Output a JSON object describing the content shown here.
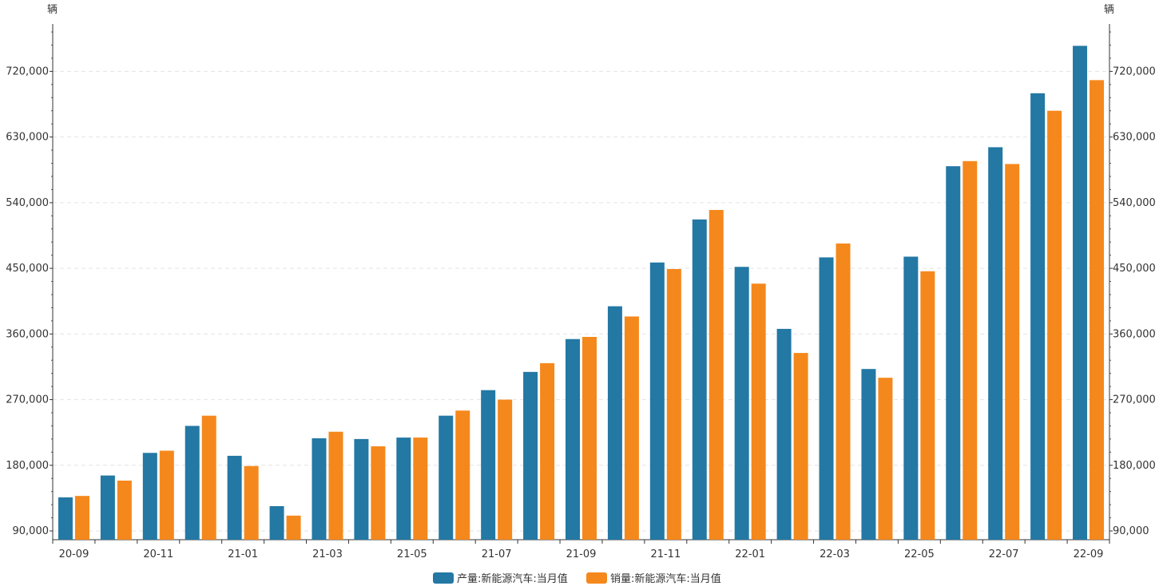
{
  "chart_data": {
    "type": "bar",
    "y_unit_left": "辆",
    "y_unit_right": "辆",
    "categories": [
      "20-09",
      "20-10",
      "20-11",
      "20-12",
      "21-01",
      "21-02",
      "21-03",
      "21-04",
      "21-05",
      "21-06",
      "21-07",
      "21-08",
      "21-09",
      "21-10",
      "21-11",
      "21-12",
      "22-01",
      "22-02",
      "22-03",
      "22-04",
      "22-05",
      "22-06",
      "22-07",
      "22-08",
      "22-09"
    ],
    "x_tick_labels": [
      "20-09",
      "",
      "20-11",
      "",
      "21-01",
      "",
      "21-03",
      "",
      "21-05",
      "",
      "21-07",
      "",
      "21-09",
      "",
      "21-11",
      "",
      "22-01",
      "",
      "22-03",
      "",
      "22-05",
      "",
      "22-07",
      "",
      "22-09"
    ],
    "series": [
      {
        "name": "产量:新能源汽车:当月值",
        "color": "#2378a4",
        "values": [
          136000,
          166000,
          197000,
          234000,
          193000,
          124000,
          217000,
          216000,
          218000,
          248000,
          283000,
          308000,
          353000,
          398000,
          458000,
          517000,
          452000,
          367000,
          465000,
          312000,
          466000,
          590000,
          616000,
          690000,
          755000
        ]
      },
      {
        "name": "销量:新能源汽车:当月值",
        "color": "#f5881c",
        "values": [
          138000,
          159000,
          200000,
          248000,
          179000,
          111000,
          226000,
          206000,
          218000,
          255000,
          270000,
          320000,
          356000,
          384000,
          449000,
          530000,
          429000,
          334000,
          484000,
          300000,
          446000,
          597000,
          593000,
          666000,
          708000
        ]
      }
    ],
    "y_ticks": [
      90000,
      180000,
      270000,
      360000,
      450000,
      540000,
      630000,
      720000
    ],
    "y_tick_labels": [
      "90,000",
      "180,000",
      "270,000",
      "360,000",
      "450,000",
      "540,000",
      "630,000",
      "720,000"
    ],
    "ylim": [
      78000,
      785000
    ],
    "grid": true,
    "legend_position": "bottom-center"
  }
}
